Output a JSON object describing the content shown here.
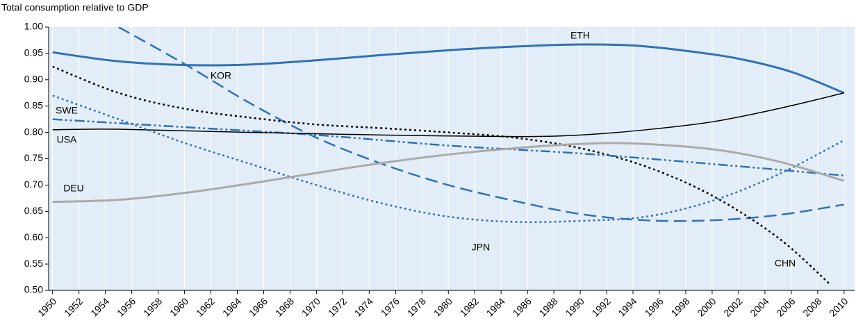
{
  "chart_data": {
    "type": "line",
    "y_label": "Total consumption relative to GDP",
    "xlim": [
      1949.7,
      2010.8
    ],
    "xticks": [
      1950,
      1952,
      1954,
      1956,
      1958,
      1960,
      1962,
      1964,
      1966,
      1968,
      1970,
      1972,
      1974,
      1976,
      1978,
      1980,
      1982,
      1984,
      1986,
      1988,
      1990,
      1992,
      1994,
      1996,
      1998,
      2000,
      2002,
      2004,
      2006,
      2008,
      2010
    ],
    "ylim": [
      0.5,
      1.0
    ],
    "yticks": [
      {
        "value": 0.5,
        "label": "0.50"
      },
      0.55,
      {
        "value": 0.6,
        "label": "0.60"
      },
      0.65,
      {
        "value": 0.7,
        "label": "0.70"
      },
      0.75,
      {
        "value": 0.8,
        "label": "0.80"
      },
      0.85,
      {
        "value": 0.9,
        "label": "0.90"
      },
      0.95,
      {
        "value": 1.0,
        "label": "1.00"
      }
    ],
    "grid": true,
    "series": [
      {
        "name": "ETH",
        "color": "#2e72b8",
        "style": "solid",
        "linewidth": 3,
        "x": [
          1950,
          1955,
          1960,
          1965,
          1970,
          1975,
          1980,
          1985,
          1990,
          1994,
          1998,
          2002,
          2006,
          2010
        ],
        "values": [
          0.952,
          0.935,
          0.928,
          0.929,
          0.937,
          0.947,
          0.956,
          0.963,
          0.967,
          0.965,
          0.955,
          0.94,
          0.915,
          0.875
        ]
      },
      {
        "name": "KOR",
        "color": "#2e72b8",
        "style": "dashed",
        "linewidth": 2.5,
        "x": [
          1955,
          1960,
          1965,
          1970,
          1975,
          1980,
          1985,
          1990,
          1995,
          2000,
          2005,
          2010
        ],
        "values": [
          1.0,
          0.93,
          0.855,
          0.79,
          0.74,
          0.7,
          0.67,
          0.645,
          0.633,
          0.633,
          0.643,
          0.663
        ]
      },
      {
        "name": "CHN",
        "color": "#000000",
        "style": "dotted",
        "linewidth": 2.5,
        "x": [
          1950,
          1955,
          1960,
          1965,
          1970,
          1975,
          1980,
          1985,
          1990,
          1995,
          2000,
          2005,
          2009
        ],
        "values": [
          0.925,
          0.875,
          0.845,
          0.828,
          0.815,
          0.808,
          0.8,
          0.79,
          0.77,
          0.735,
          0.68,
          0.6,
          0.51
        ]
      },
      {
        "name": "SWE",
        "color": "#2e72b8",
        "style": "dashdot",
        "linewidth": 2.5,
        "x": [
          1950,
          1960,
          1970,
          1980,
          1990,
          2000,
          2010
        ],
        "values": [
          0.825,
          0.81,
          0.795,
          0.775,
          0.76,
          0.74,
          0.718
        ]
      },
      {
        "name": "USA",
        "color": "#000000",
        "style": "solid",
        "linewidth": 1.5,
        "x": [
          1950,
          1955,
          1965,
          1975,
          1985,
          1990,
          1995,
          2000,
          2005,
          2010
        ],
        "values": [
          0.805,
          0.806,
          0.8,
          0.795,
          0.792,
          0.795,
          0.805,
          0.82,
          0.845,
          0.875
        ]
      },
      {
        "name": "JPN",
        "color": "#2e72b8",
        "style": "dotted",
        "linewidth": 2.5,
        "x": [
          1950,
          1955,
          1960,
          1965,
          1970,
          1975,
          1980,
          1985,
          1990,
          1995,
          2000,
          2005,
          2010
        ],
        "values": [
          0.87,
          0.825,
          0.78,
          0.74,
          0.7,
          0.665,
          0.64,
          0.63,
          0.632,
          0.64,
          0.67,
          0.72,
          0.785
        ]
      },
      {
        "name": "DEU",
        "color": "#aaaaaa",
        "style": "solid",
        "linewidth": 3,
        "x": [
          1950,
          1955,
          1960,
          1965,
          1970,
          1975,
          1980,
          1985,
          1990,
          1994,
          2000,
          2005,
          2010
        ],
        "values": [
          0.668,
          0.672,
          0.685,
          0.703,
          0.723,
          0.742,
          0.758,
          0.77,
          0.778,
          0.779,
          0.768,
          0.745,
          0.708
        ]
      }
    ]
  }
}
